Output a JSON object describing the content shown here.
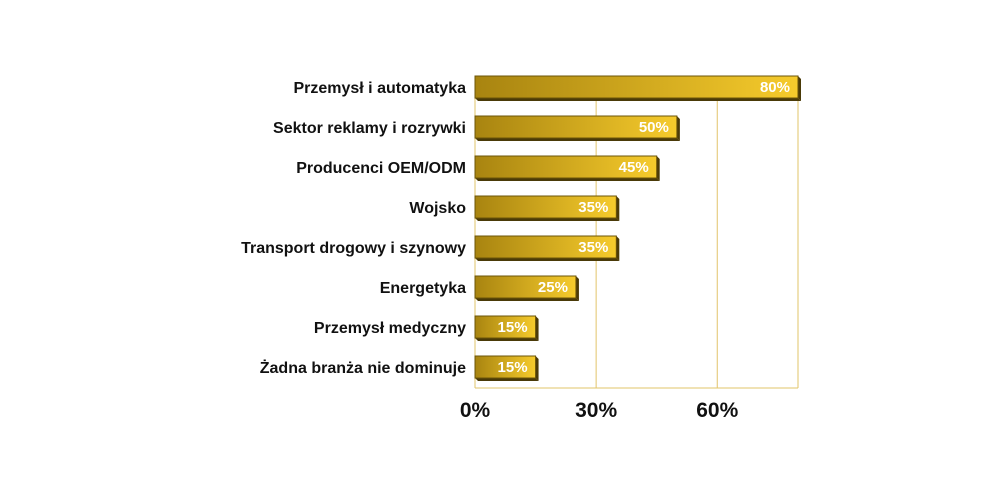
{
  "chart_data": {
    "type": "bar",
    "orientation": "horizontal",
    "categories": [
      "Przemysł i automatyka",
      "Sektor reklamy i rozrywki",
      "Producenci OEM/ODM",
      "Wojsko",
      "Transport drogowy i szynowy",
      "Energetyka",
      "Przemysł medyczny",
      "Żadna branża nie dominuje"
    ],
    "values": [
      80,
      50,
      45,
      35,
      35,
      25,
      15,
      15
    ],
    "value_labels": [
      "80%",
      "50%",
      "45%",
      "35%",
      "35%",
      "25%",
      "15%",
      "15%"
    ],
    "xticks": [
      "0%",
      "30%",
      "60%"
    ],
    "xtick_values": [
      0,
      30,
      60
    ],
    "xlim": [
      0,
      80
    ],
    "grid": "vertical",
    "title": "",
    "xlabel": "",
    "ylabel": "",
    "colors": {
      "bar_dark": "#a88410",
      "bar_light": "#f6cb2c",
      "bar_shadow": "#4a3a08",
      "grid": "#e2c46a"
    }
  }
}
